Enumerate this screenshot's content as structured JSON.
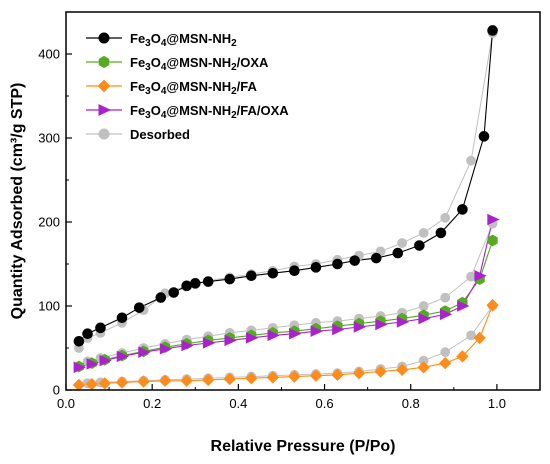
{
  "chart_data": {
    "type": "line",
    "xlabel": "Relative Pressure (P/Po)",
    "ylabel": "Quantity Adsorbed (cm³/g STP)",
    "xlim": [
      0.0,
      1.1
    ],
    "ylim": [
      0,
      450
    ],
    "xticks": [
      "0.0",
      "0.2",
      "0.4",
      "0.6",
      "0.8",
      "1.0"
    ],
    "yticks": [
      "0",
      "100",
      "200",
      "300",
      "400"
    ],
    "grid": false,
    "legend_position": "top-left",
    "series": [
      {
        "key": "s1",
        "name_parts": [
          [
            "Fe",
            ""
          ],
          [
            "3",
            "sub"
          ],
          [
            "O",
            ""
          ],
          [
            "4",
            "sub"
          ],
          [
            "@MSN-NH",
            ""
          ],
          [
            "2",
            "sub"
          ]
        ],
        "name": "Fe3O4@MSN-NH2",
        "color": "#000000",
        "marker": "circle",
        "x": [
          0.03,
          0.05,
          0.08,
          0.13,
          0.17,
          0.22,
          0.25,
          0.28,
          0.3,
          0.33,
          0.38,
          0.43,
          0.48,
          0.53,
          0.58,
          0.63,
          0.67,
          0.72,
          0.77,
          0.82,
          0.87,
          0.92,
          0.97,
          0.99
        ],
        "y": [
          58,
          67,
          74,
          86,
          98,
          110,
          116,
          124,
          127,
          129,
          132,
          136,
          139,
          142,
          146,
          150,
          154,
          157,
          163,
          172,
          187,
          215,
          302,
          428
        ]
      },
      {
        "key": "s2",
        "name_parts": [
          [
            "Fe",
            ""
          ],
          [
            "3",
            "sub"
          ],
          [
            "O",
            ""
          ],
          [
            "4",
            "sub"
          ],
          [
            "@MSN-NH",
            ""
          ],
          [
            "2",
            "sub"
          ],
          [
            "/OXA",
            ""
          ]
        ],
        "name": "Fe3O4@MSN-NH2/OXA",
        "color": "#55aa22",
        "marker": "hexagon",
        "x": [
          0.03,
          0.06,
          0.09,
          0.13,
          0.18,
          0.23,
          0.28,
          0.33,
          0.38,
          0.43,
          0.48,
          0.53,
          0.58,
          0.63,
          0.68,
          0.73,
          0.78,
          0.83,
          0.88,
          0.92,
          0.96,
          0.99
        ],
        "y": [
          28,
          32,
          36,
          41,
          46,
          51,
          55,
          59,
          62,
          65,
          68,
          70,
          73,
          76,
          79,
          82,
          85,
          89,
          94,
          104,
          132,
          178
        ]
      },
      {
        "key": "s3",
        "name_parts": [
          [
            "Fe",
            ""
          ],
          [
            "3",
            "sub"
          ],
          [
            "O",
            ""
          ],
          [
            "4",
            "sub"
          ],
          [
            "@MSN-NH",
            ""
          ],
          [
            "2",
            "sub"
          ],
          [
            "/FA",
            ""
          ]
        ],
        "name": "Fe3O4@MSN-NH2/FA",
        "color": "#ff8c1a",
        "marker": "diamond",
        "x": [
          0.03,
          0.06,
          0.09,
          0.13,
          0.18,
          0.23,
          0.28,
          0.33,
          0.38,
          0.43,
          0.48,
          0.53,
          0.58,
          0.63,
          0.68,
          0.73,
          0.78,
          0.83,
          0.88,
          0.92,
          0.96,
          0.99
        ],
        "y": [
          6,
          7,
          8,
          9,
          10,
          11,
          11,
          12,
          13,
          14,
          15,
          16,
          17,
          18,
          20,
          22,
          24,
          27,
          32,
          40,
          62,
          101
        ]
      },
      {
        "key": "s4",
        "name_parts": [
          [
            "Fe",
            ""
          ],
          [
            "3",
            "sub"
          ],
          [
            "O",
            ""
          ],
          [
            "4",
            "sub"
          ],
          [
            "@MSN-NH",
            ""
          ],
          [
            "2",
            "sub"
          ],
          [
            "/FA/OXA",
            ""
          ]
        ],
        "name": "Fe3O4@MSN-NH2/FA/OXA",
        "color": "#aa22cc",
        "marker": "triangle-right",
        "x": [
          0.03,
          0.06,
          0.09,
          0.13,
          0.18,
          0.23,
          0.28,
          0.33,
          0.38,
          0.43,
          0.48,
          0.53,
          0.58,
          0.63,
          0.68,
          0.73,
          0.78,
          0.83,
          0.88,
          0.92,
          0.96,
          0.99
        ],
        "y": [
          27,
          31,
          35,
          40,
          45,
          49,
          53,
          56,
          59,
          62,
          65,
          67,
          70,
          72,
          75,
          78,
          81,
          85,
          90,
          100,
          136,
          203
        ]
      },
      {
        "key": "s5",
        "name_parts": [
          [
            "Desorbed",
            ""
          ]
        ],
        "name": "Desorbed",
        "color": "#c0c0c0",
        "marker": "circle",
        "segments": [
          {
            "x": [
              0.99,
              0.94,
              0.88,
              0.83,
              0.78,
              0.73,
              0.68,
              0.63,
              0.58,
              0.53,
              0.48,
              0.43,
              0.38,
              0.33,
              0.28,
              0.23,
              0.18,
              0.13,
              0.08,
              0.05,
              0.03
            ],
            "y": [
              425,
              273,
              205,
              187,
              175,
              165,
              160,
              155,
              150,
              147,
              142,
              138,
              134,
              130,
              124,
              115,
              95,
              80,
              68,
              62,
              50
            ]
          },
          {
            "x": [
              0.99,
              0.94,
              0.88,
              0.83,
              0.78,
              0.73,
              0.68,
              0.63,
              0.58,
              0.53,
              0.48,
              0.43,
              0.38,
              0.33,
              0.28,
              0.23,
              0.18,
              0.13,
              0.08,
              0.05
            ],
            "y": [
              198,
              135,
              110,
              100,
              92,
              88,
              85,
              82,
              80,
              77,
              74,
              71,
              68,
              64,
              60,
              55,
              50,
              44,
              38,
              34
            ]
          },
          {
            "x": [
              0.99,
              0.94,
              0.88,
              0.83,
              0.78,
              0.73,
              0.68,
              0.63,
              0.58,
              0.53,
              0.48,
              0.43,
              0.38,
              0.33,
              0.28,
              0.23,
              0.18,
              0.13,
              0.08,
              0.05
            ],
            "y": [
              100,
              65,
              45,
              35,
              28,
              25,
              22,
              20,
              19,
              18,
              17,
              16,
              15,
              14,
              13,
              12,
              11,
              10,
              9,
              8
            ]
          }
        ]
      }
    ]
  }
}
